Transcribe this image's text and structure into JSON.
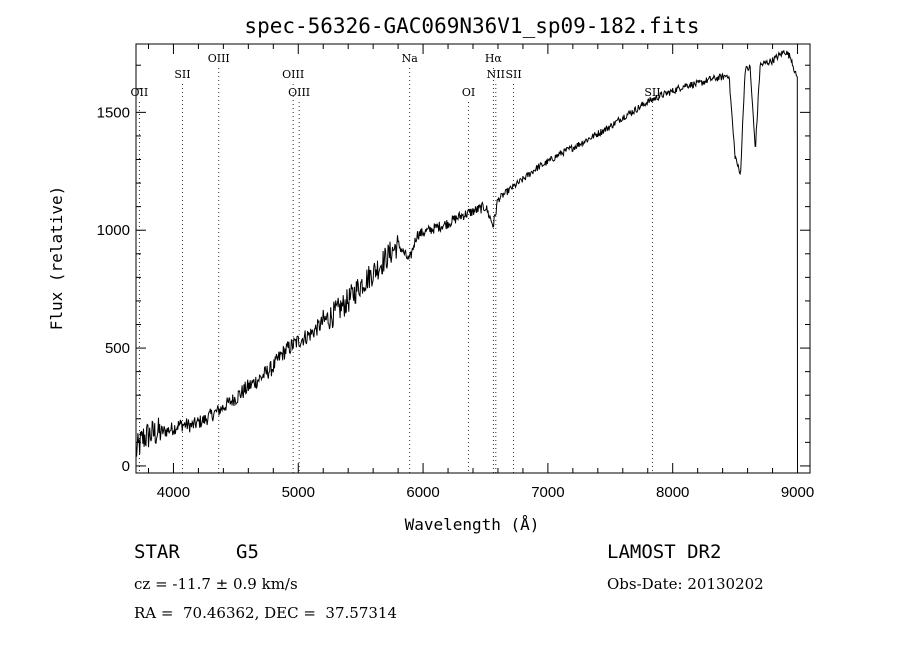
{
  "chart_data": {
    "type": "line",
    "title": "spec-56326-GAC069N36V1_sp09-182.fits",
    "xlabel": "Wavelength (Å)",
    "ylabel": "Flux (relative)",
    "xlim": [
      3700,
      9100
    ],
    "ylim": [
      -30,
      1790
    ],
    "x_ticks": [
      4000,
      5000,
      6000,
      7000,
      8000,
      9000
    ],
    "y_ticks": [
      0,
      500,
      1000,
      1500
    ],
    "x_tick_labels": [
      "4000",
      "5000",
      "6000",
      "7000",
      "8000",
      "9000"
    ],
    "y_tick_labels": [
      "0",
      "500",
      "1000",
      "1500"
    ],
    "grid": false,
    "series": [
      {
        "x": [
          3700,
          3730,
          3760,
          3800,
          3850,
          3900,
          3950,
          4000,
          4050,
          4100,
          4150,
          4200,
          4250,
          4300,
          4350,
          4400,
          4500,
          4600,
          4700,
          4800,
          4861,
          4900,
          5000,
          5100,
          5200,
          5300,
          5400,
          5500,
          5600,
          5700,
          5800,
          5890,
          5950,
          6000,
          6100,
          6200,
          6300,
          6400,
          6500,
          6563,
          6600,
          6700,
          6800,
          6900,
          7000,
          7100,
          7200,
          7300,
          7400,
          7500,
          7600,
          7700,
          7800,
          7900,
          8000,
          8100,
          8200,
          8300,
          8400,
          8450,
          8498,
          8542,
          8580,
          8620,
          8662,
          8700,
          8750,
          8800,
          8850,
          8900,
          8950,
          8990,
          9000
        ],
        "y": [
          60,
          90,
          120,
          130,
          140,
          145,
          150,
          160,
          175,
          175,
          170,
          185,
          195,
          215,
          230,
          250,
          290,
          335,
          375,
          420,
          470,
          490,
          530,
          560,
          610,
          650,
          700,
          770,
          820,
          880,
          940,
          870,
          980,
          990,
          1010,
          1030,
          1060,
          1080,
          1100,
          1020,
          1130,
          1175,
          1215,
          1260,
          1290,
          1325,
          1350,
          1380,
          1410,
          1440,
          1480,
          1510,
          1545,
          1570,
          1590,
          1615,
          1620,
          1640,
          1650,
          1660,
          1320,
          1230,
          1680,
          1690,
          1340,
          1700,
          1710,
          1720,
          1740,
          1760,
          1730,
          1650,
          0
        ]
      }
    ],
    "lines": [
      {
        "label": "OII",
        "x": 3727,
        "row": 3
      },
      {
        "label": "SII",
        "x": 4072,
        "row": 2
      },
      {
        "label": "OIII",
        "x": 4363,
        "row": 1
      },
      {
        "label": "OIII",
        "x": 4959,
        "row": 2
      },
      {
        "label": "OIII",
        "x": 5007,
        "row": 3
      },
      {
        "label": "Na",
        "x": 5893,
        "row": 1
      },
      {
        "label": "OI",
        "x": 6364,
        "row": 3
      },
      {
        "label": "Hα",
        "x": 6563,
        "row": 1
      },
      {
        "label": "NII",
        "x": 6583,
        "row": 2
      },
      {
        "label": "SII",
        "x": 6725,
        "row": 2
      },
      {
        "label": "SII",
        "x": 7838,
        "row": 3
      }
    ]
  },
  "footer": {
    "object_class": "STAR",
    "subclass": "G5",
    "survey": "LAMOST DR2",
    "redshift": "cz = -11.7 ± 0.9 km/s",
    "obs_date": "Obs-Date: 20130202",
    "coords": "RA =  70.46362, DEC =  37.57314"
  }
}
